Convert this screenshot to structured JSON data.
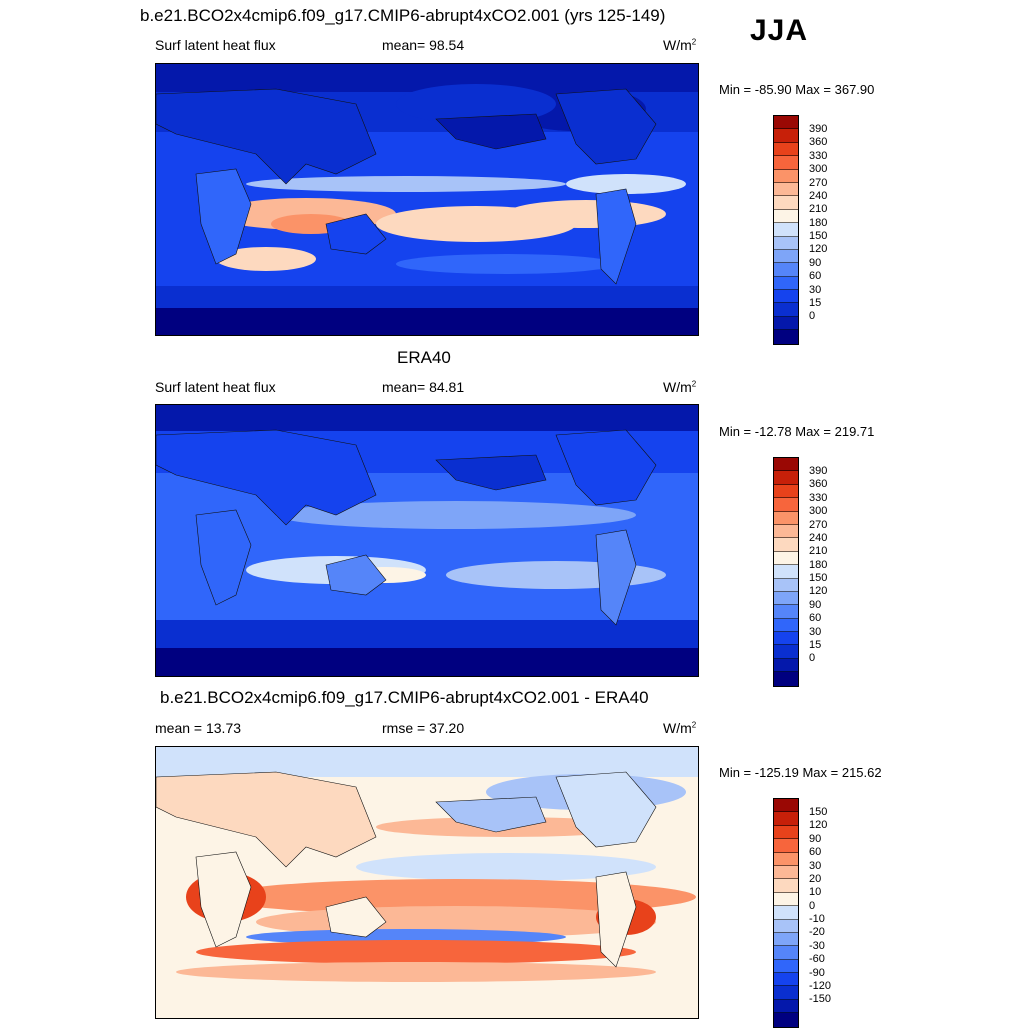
{
  "season": "JJA",
  "colors": {
    "heat": [
      "#000080",
      "#0418ab",
      "#0a2fd0",
      "#1543ee",
      "#3066fa",
      "#5585f9",
      "#7ea5f8",
      "#a8c3f8",
      "#d0e2fb",
      "#fdf4e6",
      "#fdd9bf",
      "#fcb896",
      "#fb9368",
      "#f7653c",
      "#e8421b",
      "#c72009",
      "#9a0804"
    ],
    "diff": [
      "#000080",
      "#0418ab",
      "#0a2fd0",
      "#1543ee",
      "#3066fa",
      "#5585f9",
      "#7ea5f8",
      "#a8c3f8",
      "#d0e2fb",
      "#fdf4e6",
      "#fdd9bf",
      "#fcb896",
      "#fb9368",
      "#f7653c",
      "#e8421b",
      "#c72009",
      "#9a0804"
    ]
  },
  "panels": [
    {
      "title": "b.e21.BCO2x4cmip6.f09_g17.CMIP6-abrupt4xCO2.001 (yrs 125-149)",
      "left_text": "Surf latent heat flux",
      "center_text": "mean=  98.54",
      "units": "W/m",
      "units_sup": "2",
      "minmax": "Min = -85.90 Max = 367.90",
      "colorbar_labels": [
        "390",
        "360",
        "330",
        "300",
        "270",
        "240",
        "210",
        "180",
        "150",
        "120",
        "90",
        "60",
        "30",
        "15",
        "0"
      ]
    },
    {
      "title": "ERA40",
      "left_text": "Surf latent heat flux",
      "center_text": "mean=  84.81",
      "units": "W/m",
      "units_sup": "2",
      "minmax": "Min = -12.78 Max = 219.71",
      "colorbar_labels": [
        "390",
        "360",
        "330",
        "300",
        "270",
        "240",
        "210",
        "180",
        "150",
        "120",
        "90",
        "60",
        "30",
        "15",
        "0"
      ]
    },
    {
      "title": "b.e21.BCO2x4cmip6.f09_g17.CMIP6-abrupt4xCO2.001 - ERA40",
      "left_text": "mean =  13.73",
      "center_text": "rmse =  37.20",
      "units": "W/m",
      "units_sup": "2",
      "minmax": "Min = -125.19 Max = 215.62",
      "colorbar_labels": [
        "150",
        "120",
        "90",
        "60",
        "30",
        "20",
        "10",
        "0",
        "-10",
        "-20",
        "-30",
        "-60",
        "-90",
        "-120",
        "-150"
      ]
    }
  ]
}
